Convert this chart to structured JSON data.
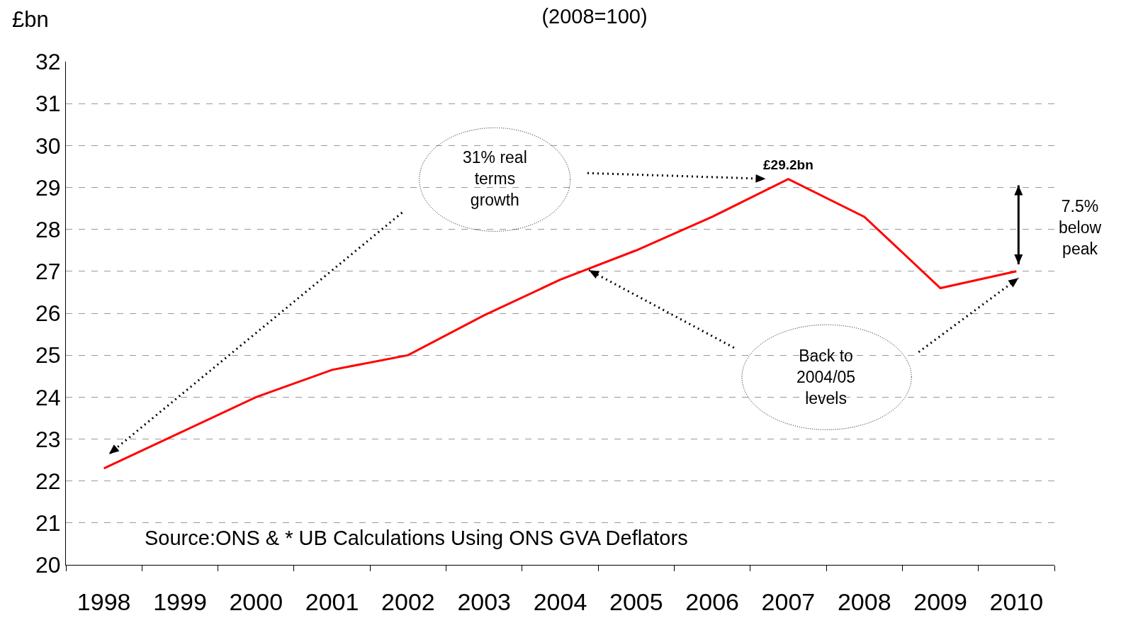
{
  "chart_data": {
    "type": "line",
    "title": "(2008=100)",
    "ylabel": "£bn",
    "categories": [
      "1998",
      "1999",
      "2000",
      "2001",
      "2002",
      "2003",
      "2004",
      "2005",
      "2006",
      "2007",
      "2008",
      "2009",
      "2010"
    ],
    "series": [
      {
        "color": "#ff0000",
        "values": [
          22.3,
          23.15,
          24.0,
          24.65,
          25.0,
          25.95,
          26.8,
          27.5,
          28.3,
          29.2,
          28.3,
          26.6,
          27.0
        ]
      }
    ],
    "ylim": [
      20,
      32
    ],
    "yticks": [
      20,
      21,
      22,
      23,
      24,
      25,
      26,
      27,
      28,
      29,
      30,
      31,
      32
    ],
    "grid": "y",
    "marker": "none",
    "line_style": "solid",
    "annotations": [
      {
        "text": "£29.2bn",
        "x": "2007",
        "y": 29.2
      },
      "31% real\nterms\ngrowth",
      "Back to\n2004/05\nlevels",
      "7.5%\nbelow\npeak",
      "Source:ONS & * UB Calculations Using ONS GVA Deflators"
    ]
  }
}
